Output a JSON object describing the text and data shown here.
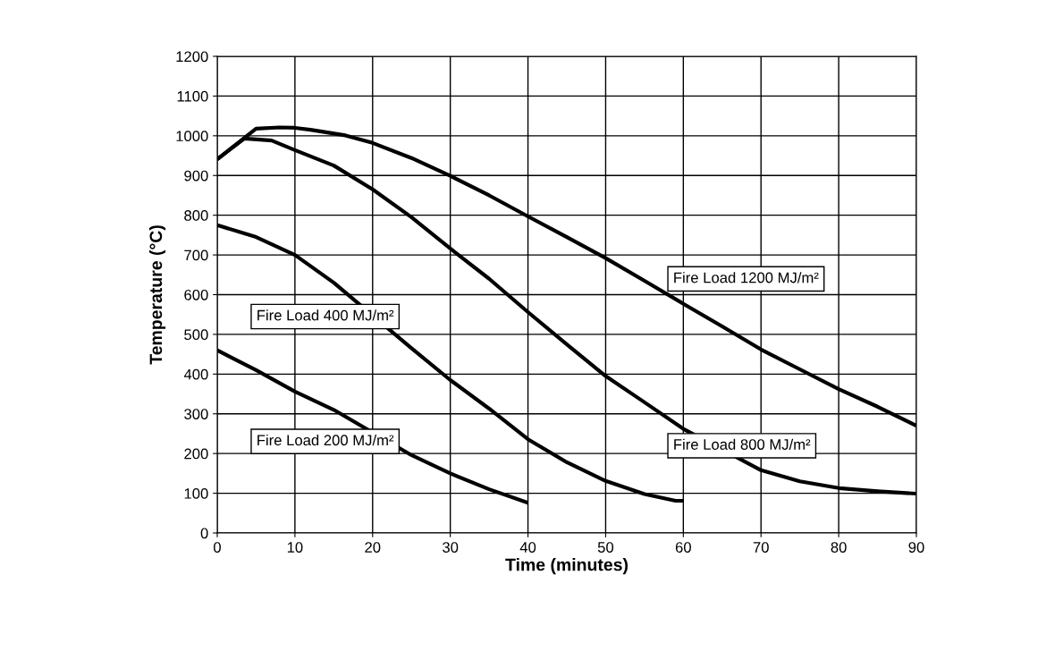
{
  "chart_data": {
    "type": "line",
    "xlabel": "Time (minutes)",
    "ylabel": "Temperature (°C)",
    "xlim": [
      0,
      90
    ],
    "xticks": [
      0,
      10,
      20,
      30,
      40,
      50,
      60,
      70,
      80,
      90
    ],
    "ylim": [
      0,
      1200
    ],
    "yticks": [
      0,
      100,
      200,
      300,
      400,
      500,
      600,
      700,
      800,
      900,
      1000,
      1100,
      1200
    ],
    "grid": true,
    "marker": "none",
    "line_style": "solid",
    "series": [
      {
        "name": "Fire Load 1200 MJ/m²",
        "color": "#000000",
        "x": [
          0,
          5,
          8,
          10,
          12,
          16.5,
          20,
          25,
          30,
          35,
          40,
          45,
          50,
          55,
          60,
          65,
          70,
          75,
          80,
          85,
          90
        ],
        "values": [
          941,
          1018,
          1021,
          1020,
          1015,
          1001,
          982,
          944,
          899,
          850,
          797,
          745,
          692,
          635,
          577,
          520,
          462,
          412,
          362,
          318,
          270
        ]
      },
      {
        "name": "Fire Load 800 MJ/m²",
        "color": "#000000",
        "x": [
          0,
          3.5,
          7,
          10,
          15,
          20,
          25,
          30,
          35,
          40,
          45,
          50,
          55,
          60,
          70,
          75,
          80,
          85,
          90
        ],
        "values": [
          941,
          993,
          988,
          964,
          925,
          865,
          795,
          716,
          640,
          556,
          475,
          395,
          329,
          262,
          158,
          130,
          113,
          105,
          99
        ]
      },
      {
        "name": "Fire Load 400 MJ/m²",
        "color": "#000000",
        "x": [
          0,
          5,
          10,
          15,
          25,
          30,
          35,
          40,
          45,
          50,
          55,
          59,
          60
        ],
        "values": [
          775,
          745,
          700,
          630,
          465,
          385,
          313,
          236,
          178,
          131,
          98,
          81,
          81
        ]
      },
      {
        "name": "Fire Load 200 MJ/m²",
        "color": "#000000",
        "x": [
          0,
          5,
          10,
          15,
          25,
          30,
          35,
          40
        ],
        "values": [
          460,
          410,
          356,
          310,
          196,
          150,
          110,
          76
        ]
      }
    ]
  }
}
